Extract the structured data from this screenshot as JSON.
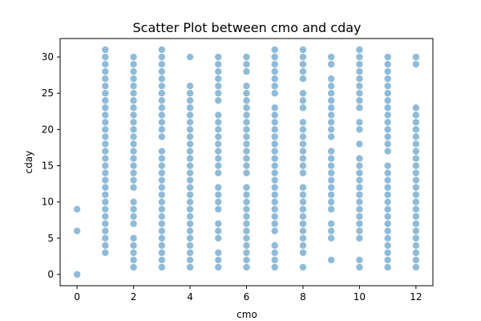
{
  "chart_data": {
    "type": "scatter",
    "title": "Scatter Plot between cmo and cday",
    "xlabel": "cmo",
    "ylabel": "cday",
    "xlim": [
      -0.6,
      12.6
    ],
    "ylim": [
      -1.55,
      32.55
    ],
    "xticks": [
      0,
      2,
      4,
      6,
      8,
      10,
      12
    ],
    "yticks": [
      0,
      5,
      10,
      15,
      20,
      25,
      30
    ],
    "grid": false,
    "marker_color": "#1f77b4",
    "marker_alpha": 0.5,
    "series": [
      {
        "points_by_x": {
          "0": [
            0,
            6,
            9
          ],
          "1": [
            3,
            4,
            5,
            6,
            7,
            8,
            9,
            10,
            11,
            12,
            13,
            14,
            15,
            16,
            17,
            18,
            19,
            20,
            21,
            22,
            23,
            24,
            25,
            26,
            27,
            28,
            29,
            30,
            31
          ],
          "2": [
            1,
            2,
            3,
            4,
            5,
            7,
            8,
            9,
            10,
            12,
            13,
            14,
            15,
            16,
            17,
            18,
            19,
            20,
            21,
            22,
            23,
            24,
            25,
            26,
            27,
            28,
            29,
            30
          ],
          "3": [
            1,
            2,
            3,
            4,
            5,
            6,
            7,
            8,
            9,
            10,
            11,
            12,
            13,
            14,
            15,
            16,
            17,
            19,
            20,
            21,
            22,
            23,
            24,
            25,
            26,
            27,
            28,
            29,
            30,
            31
          ],
          "4": [
            1,
            2,
            3,
            4,
            5,
            6,
            7,
            8,
            9,
            10,
            11,
            12,
            13,
            14,
            15,
            16,
            17,
            18,
            19,
            20,
            21,
            22,
            23,
            24,
            25,
            26,
            30
          ],
          "5": [
            1,
            2,
            3,
            5,
            6,
            7,
            9,
            10,
            11,
            12,
            14,
            15,
            16,
            17,
            18,
            19,
            20,
            21,
            22,
            24,
            25,
            26,
            27,
            28,
            29,
            30
          ],
          "6": [
            1,
            2,
            3,
            4,
            5,
            6,
            7,
            8,
            9,
            10,
            11,
            12,
            14,
            15,
            16,
            17,
            18,
            19,
            20,
            21,
            22,
            23,
            24,
            25,
            26,
            28,
            29,
            30
          ],
          "7": [
            1,
            2,
            3,
            4,
            6,
            7,
            8,
            9,
            10,
            11,
            12,
            13,
            14,
            15,
            16,
            17,
            18,
            19,
            20,
            21,
            22,
            23,
            25,
            26,
            27,
            28,
            29,
            30,
            31
          ],
          "8": [
            1,
            3,
            4,
            5,
            6,
            7,
            8,
            9,
            10,
            11,
            12,
            14,
            15,
            16,
            17,
            18,
            19,
            20,
            21,
            23,
            24,
            25,
            27,
            28,
            29,
            30,
            31
          ],
          "9": [
            2,
            5,
            6,
            7,
            9,
            10,
            11,
            12,
            13,
            14,
            15,
            16,
            17,
            19,
            20,
            21,
            22,
            23,
            24,
            25,
            26,
            27,
            29,
            30
          ],
          "10": [
            1,
            2,
            5,
            6,
            7,
            8,
            9,
            10,
            11,
            12,
            13,
            14,
            15,
            16,
            18,
            20,
            21,
            23,
            24,
            25,
            26,
            27,
            28,
            29,
            30,
            31
          ],
          "11": [
            1,
            2,
            3,
            4,
            5,
            6,
            7,
            8,
            9,
            10,
            11,
            12,
            13,
            14,
            15,
            17,
            18,
            19,
            20,
            21,
            22,
            23,
            24,
            25,
            26,
            27,
            28,
            29,
            30
          ],
          "12": [
            1,
            2,
            3,
            4,
            5,
            6,
            7,
            8,
            9,
            10,
            11,
            12,
            13,
            14,
            15,
            16,
            17,
            18,
            19,
            20,
            21,
            22,
            23,
            29,
            30
          ]
        }
      }
    ]
  }
}
